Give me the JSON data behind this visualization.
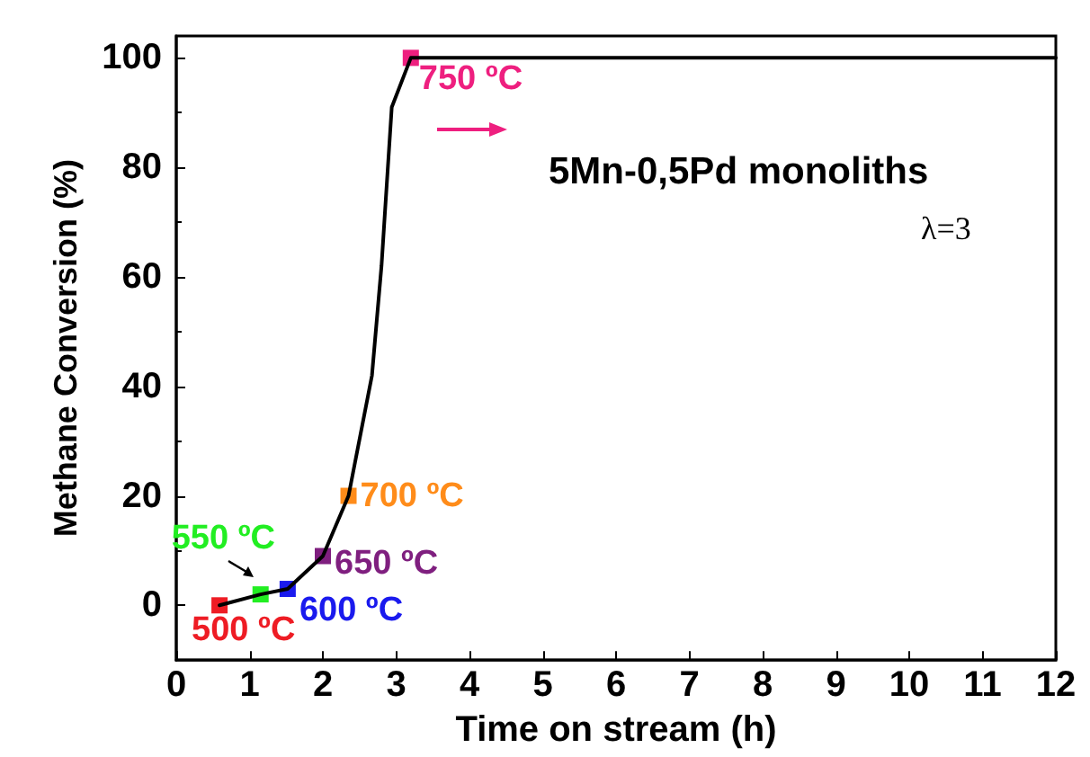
{
  "chart_data": {
    "type": "line",
    "title": "5Mn-0,5Pd monoliths",
    "xlabel": "Time on stream (h)",
    "ylabel": "Methane Conversion (%)",
    "annotations": [
      "λ=3"
    ],
    "xlim": [
      0,
      12
    ],
    "xticks": [
      0,
      1,
      2,
      3,
      4,
      5,
      6,
      7,
      8,
      9,
      10,
      11,
      12
    ],
    "ylim": [
      -10,
      104
    ],
    "yticks": [
      0,
      20,
      40,
      60,
      80,
      100
    ],
    "marker": "none",
    "line_style": "solid",
    "series": [
      {
        "color": "#000000",
        "x": [
          0.59,
          1.15,
          1.52,
          2.0,
          2.35,
          2.67,
          2.8,
          2.94,
          3.2,
          4,
          5,
          6,
          7,
          8,
          9,
          10,
          11,
          12
        ],
        "values": [
          0,
          2,
          3,
          9,
          20,
          42,
          62,
          91,
          100,
          100,
          100,
          100,
          100,
          100,
          100,
          100,
          100,
          100
        ]
      },
      {
        "type": "scatter",
        "marker": "square",
        "name": "500 ºC",
        "color": "#ee1c24",
        "x": [
          0.59
        ],
        "values": [
          0
        ]
      },
      {
        "type": "scatter",
        "marker": "square",
        "name": "550 ºC",
        "color": "#22ee22",
        "x": [
          1.15
        ],
        "values": [
          2
        ]
      },
      {
        "type": "scatter",
        "marker": "square",
        "name": "600 ºC",
        "color": "#1a1aee",
        "x": [
          1.52
        ],
        "values": [
          3
        ]
      },
      {
        "type": "scatter",
        "marker": "square",
        "name": "650 ºC",
        "color": "#7f1f7f",
        "x": [
          2.0
        ],
        "values": [
          9
        ]
      },
      {
        "type": "scatter",
        "marker": "square",
        "name": "700 ºC",
        "color": "#ff8c1a",
        "x": [
          2.35
        ],
        "values": [
          20
        ]
      },
      {
        "type": "scatter",
        "marker": "square",
        "name": "750 ºC",
        "color": "#ee1f7f",
        "x": [
          3.2
        ],
        "values": [
          100
        ]
      }
    ]
  }
}
